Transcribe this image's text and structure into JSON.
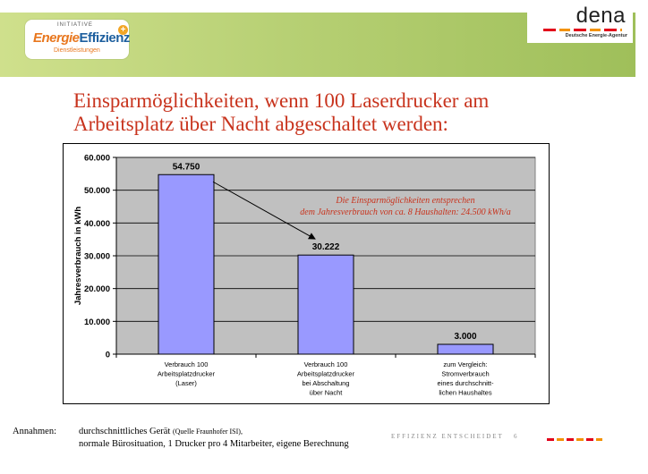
{
  "header": {
    "logo_left": {
      "initiative": "INITIATIVE",
      "brand_part1": "Energie",
      "brand_part2": "Effizienz",
      "subtitle": "Dienstleistungen"
    },
    "logo_right": {
      "word": "dena",
      "tagline": "Deutsche Energie-Agentur"
    }
  },
  "title_line1": "Einsparmöglichkeiten, wenn 100 Laserdrucker am",
  "title_line2": "Arbeitsplatz über Nacht abgeschaltet werden:",
  "chart_data": {
    "type": "bar",
    "categories": [
      [
        "Verbrauch 100",
        "Arbeitsplatzdrucker",
        "(Laser)"
      ],
      [
        "Verbrauch 100",
        "Arbeitsplatzdrucker",
        "bei Abschaltung",
        "über Nacht"
      ],
      [
        "zum Vergleich:",
        "Stromverbrauch",
        "eines durchschnitt-",
        "lichen Haushaltes"
      ]
    ],
    "values": [
      54750,
      30222,
      3000
    ],
    "value_labels": [
      "54.750",
      "30.222",
      "3.000"
    ],
    "y_ticks": [
      0,
      10000,
      20000,
      30000,
      40000,
      50000,
      60000
    ],
    "y_tick_labels": [
      "0",
      "10.000",
      "20.000",
      "30.000",
      "40.000",
      "50.000",
      "60.000"
    ],
    "ylim": [
      0,
      60000
    ],
    "ylabel": "Jahresverbrauch in kWh",
    "xlabel": "",
    "grid": true,
    "colors": {
      "bar": "#9999ff",
      "bar_edge": "#000000",
      "plot_bg": "#c0c0c0",
      "grid": "#000000"
    },
    "annotation": {
      "line1": "Die Einsparmöglichkeiten entsprechen",
      "line2": "dem Jahresverbrauch von ca. 8 Haushalten: 24.500 kWh/a",
      "color": "#c8331d"
    }
  },
  "footer": {
    "label": "Annahmen:",
    "line1": "durchschnittliches Gerät",
    "line1_source": "(Quelle Fraunhofer ISI),",
    "line2": "normale Bürosituation, 1 Drucker pro 4 Mitarbeiter, eigene Berechnung",
    "right_text": "EFFIZIENZ ENTSCHEIDET",
    "page_number": "6"
  }
}
